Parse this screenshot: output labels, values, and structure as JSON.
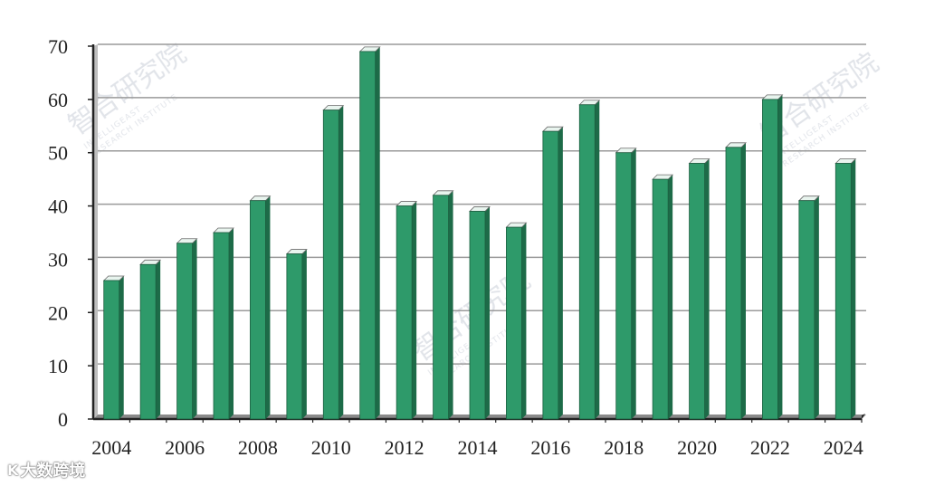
{
  "chart_data": {
    "type": "bar",
    "categories": [
      "2004",
      "2005",
      "2006",
      "2007",
      "2008",
      "2009",
      "2010",
      "2011",
      "2012",
      "2013",
      "2014",
      "2015",
      "2016",
      "2017",
      "2018",
      "2019",
      "2020",
      "2021",
      "2022",
      "2023",
      "2024"
    ],
    "values": [
      26,
      29,
      33,
      35,
      41,
      31,
      58,
      69,
      40,
      42,
      39,
      36,
      54,
      59,
      50,
      45,
      48,
      51,
      60,
      41,
      48
    ],
    "x_tick_labels": [
      "2004",
      "2006",
      "2008",
      "2010",
      "2012",
      "2014",
      "2016",
      "2018",
      "2020",
      "2022",
      "2024"
    ],
    "y_tick_labels": [
      "0",
      "10",
      "20",
      "30",
      "40",
      "50",
      "60",
      "70"
    ],
    "ylim": [
      0,
      70
    ],
    "title": "",
    "xlabel": "",
    "ylabel": "",
    "grid": true,
    "legend": "none",
    "bar_color": "#2e9a6a",
    "bar_side_color": "#1d6b48",
    "bar_top_color": "#e8f4ee",
    "grid_color": "#9a9a9a"
  },
  "watermark": {
    "cn": "智合研究院",
    "en_line1": "INTELLIGEAST",
    "en_line2": "RESEARCH INSTITUTE"
  },
  "brand": {
    "logo_text": "K",
    "name": "大数跨境"
  }
}
